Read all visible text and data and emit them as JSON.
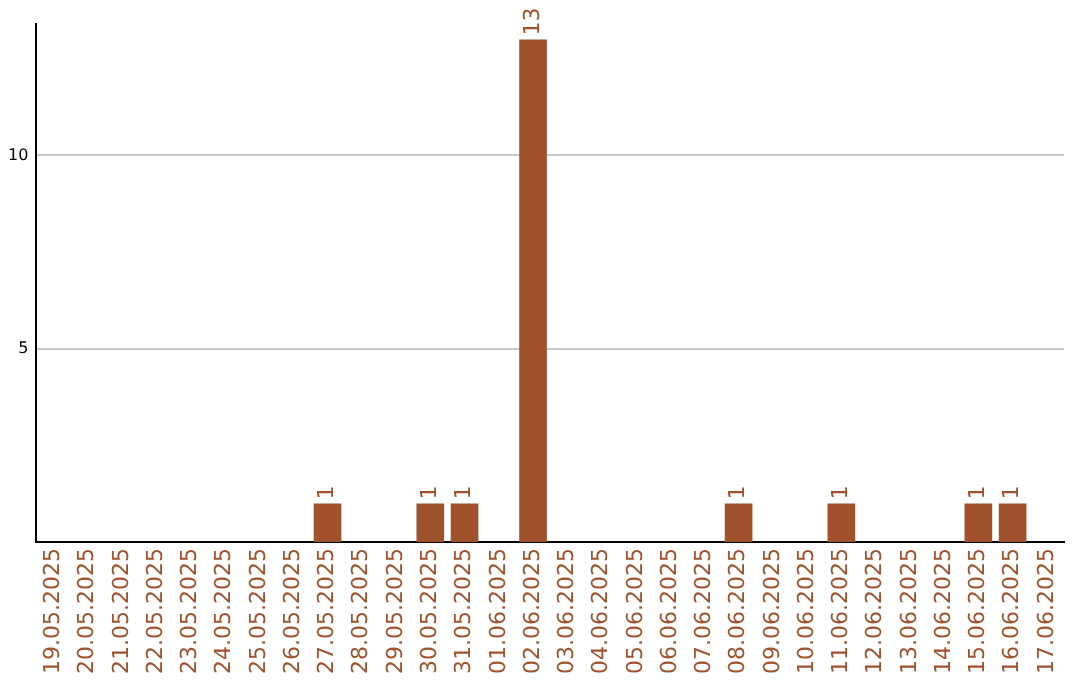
{
  "chart_data": {
    "type": "bar",
    "categories": [
      "19.05.2025",
      "20.05.2025",
      "21.05.2025",
      "22.05.2025",
      "23.05.2025",
      "24.05.2025",
      "25.05.2025",
      "26.05.2025",
      "27.05.2025",
      "28.05.2025",
      "29.05.2025",
      "30.05.2025",
      "31.05.2025",
      "01.06.2025",
      "02.06.2025",
      "03.06.2025",
      "04.06.2025",
      "05.06.2025",
      "06.06.2025",
      "07.06.2025",
      "08.06.2025",
      "09.06.2025",
      "10.06.2025",
      "11.06.2025",
      "12.06.2025",
      "13.06.2025",
      "14.06.2025",
      "15.06.2025",
      "16.06.2025",
      "17.06.2025"
    ],
    "values": [
      0,
      0,
      0,
      0,
      0,
      0,
      0,
      0,
      1,
      0,
      0,
      1,
      1,
      0,
      13,
      0,
      0,
      0,
      0,
      0,
      1,
      0,
      0,
      1,
      0,
      0,
      0,
      1,
      1,
      0
    ],
    "value_labels": [
      null,
      null,
      null,
      null,
      null,
      null,
      null,
      null,
      "1",
      null,
      null,
      "1",
      "1",
      null,
      "13",
      null,
      null,
      null,
      null,
      null,
      "1",
      null,
      null,
      "1",
      null,
      null,
      null,
      "1",
      "1",
      null
    ],
    "color": "#a0522d",
    "ylim": [
      0,
      13.4
    ],
    "yticks": [
      5,
      10
    ],
    "grid": "y",
    "legend": false
  }
}
